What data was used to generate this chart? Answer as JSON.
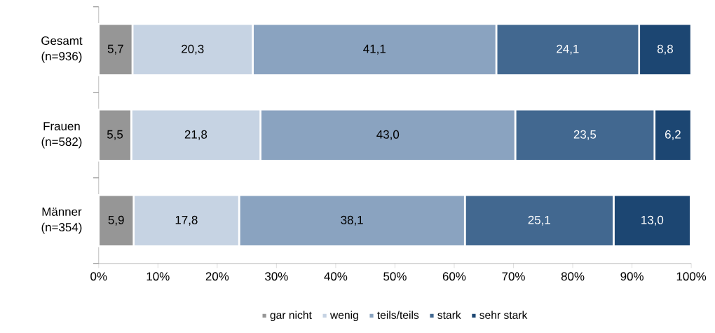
{
  "chart_data": {
    "type": "bar",
    "orientation": "horizontal",
    "stacked": true,
    "categories": [
      "Gesamt (n=936)",
      "Frauen (n=582)",
      "Männer (n=354)"
    ],
    "series": [
      {
        "name": "gar nicht",
        "color": "#969696",
        "values": [
          5.7,
          5.5,
          5.9
        ],
        "value_labels": [
          "5,7",
          "5,5",
          "5,9"
        ]
      },
      {
        "name": "wenig",
        "color": "#c6d3e3",
        "values": [
          20.3,
          21.8,
          17.8
        ],
        "value_labels": [
          "20,3",
          "21,8",
          "17,8"
        ]
      },
      {
        "name": "teils/teils",
        "color": "#8aa3c0",
        "values": [
          41.1,
          43.0,
          38.1
        ],
        "value_labels": [
          "41,1",
          "43,0",
          "38,1"
        ]
      },
      {
        "name": "stark",
        "color": "#426890",
        "values": [
          24.1,
          23.5,
          25.1
        ],
        "value_labels": [
          "24,1",
          "23,5",
          "25,1"
        ]
      },
      {
        "name": "sehr stark",
        "color": "#1c4672",
        "values": [
          8.8,
          6.2,
          13.0
        ],
        "value_labels": [
          "8,8",
          "6,2",
          "13,0"
        ]
      }
    ],
    "xlim": [
      0,
      100
    ],
    "xticks": [
      {
        "value": 0,
        "label": "0%"
      },
      {
        "value": 10,
        "label": "10%"
      },
      {
        "value": 20,
        "label": "20%"
      },
      {
        "value": 30,
        "label": "30%"
      },
      {
        "value": 40,
        "label": "40%"
      },
      {
        "value": 50,
        "label": "50%"
      },
      {
        "value": 60,
        "label": "60%"
      },
      {
        "value": 70,
        "label": "70%"
      },
      {
        "value": 80,
        "label": "80%"
      },
      {
        "value": 90,
        "label": "90%"
      },
      {
        "value": 100,
        "label": "100%"
      }
    ],
    "legend": "bottom",
    "grid": false
  }
}
